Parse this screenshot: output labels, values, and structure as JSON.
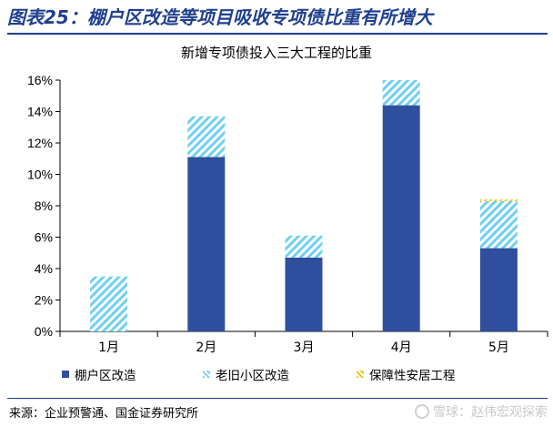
{
  "figure": {
    "header": "图表25：棚户区改造等项目吸收专项债比重有所增大",
    "source": "来源：企业预警通、国金证券研究所",
    "watermark": "雪球：赵伟宏观探索"
  },
  "colors": {
    "series0": "#2f4f9e",
    "series1": "#6fd0f2",
    "series2": "#f2c200",
    "header": "#1f3f8f"
  },
  "chart_data": {
    "type": "bar",
    "stacked": true,
    "title": "新增专项债投入三大工程的比重",
    "xlabel": "",
    "ylabel": "",
    "categories": [
      "1月",
      "2月",
      "3月",
      "4月",
      "5月"
    ],
    "ylim": [
      0,
      16
    ],
    "yticks": [
      0,
      2,
      4,
      6,
      8,
      10,
      12,
      14,
      16
    ],
    "ytick_labels": [
      "0%",
      "2%",
      "4%",
      "6%",
      "8%",
      "10%",
      "12%",
      "14%",
      "16%"
    ],
    "grid": false,
    "legend_position": "bottom",
    "series": [
      {
        "name": "棚户区改造",
        "values": [
          0,
          11.1,
          4.7,
          14.4,
          5.3
        ]
      },
      {
        "name": "老旧小区改造",
        "values": [
          3.5,
          2.6,
          1.4,
          1.6,
          3.0
        ]
      },
      {
        "name": "保障性安居工程",
        "values": [
          0,
          0,
          0,
          0,
          0.1
        ]
      }
    ]
  }
}
